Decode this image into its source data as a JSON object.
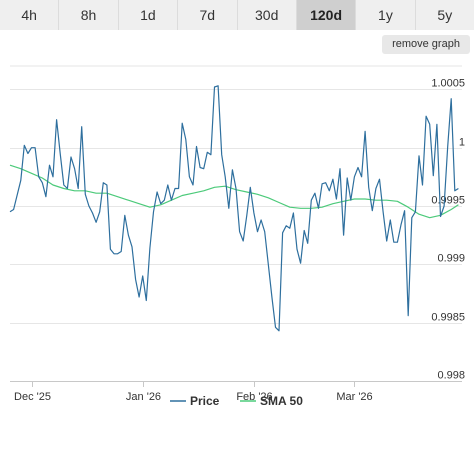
{
  "range_tabs": [
    "4h",
    "8h",
    "1d",
    "7d",
    "30d",
    "120d",
    "1y",
    "5y"
  ],
  "active_tab": "120d",
  "remove_graph_label": "remove graph",
  "colors": {
    "price": "#2e6f9e",
    "sma": "#4cca7a",
    "grid": "#e6e6e6"
  },
  "chart_data": {
    "type": "line",
    "title": "",
    "xlabel": "",
    "ylabel": "",
    "ylim": [
      0.998,
      1.0007
    ],
    "grid": true,
    "legend_position": "bottom",
    "y_ticks": [
      {
        "value": 0.998,
        "label": "0.998"
      },
      {
        "value": 0.9985,
        "label": "0.9985"
      },
      {
        "value": 0.999,
        "label": "0.999"
      },
      {
        "value": 0.9995,
        "label": "0.9995"
      },
      {
        "value": 1.0,
        "label": "1"
      },
      {
        "value": 1.0005,
        "label": "1.0005"
      }
    ],
    "x_range": [
      "2025-11-25",
      "2026-03-31"
    ],
    "x_ticks": [
      {
        "date": "2025-12-01",
        "label": "Dec '25"
      },
      {
        "date": "2026-01-01",
        "label": "Jan '26"
      },
      {
        "date": "2026-02-01",
        "label": "Feb '26"
      },
      {
        "date": "2026-03-01",
        "label": "Mar '26"
      }
    ],
    "series": [
      {
        "name": "Price",
        "points": [
          [
            "2025-11-25",
            0.99945
          ],
          [
            "2025-11-26",
            0.99947
          ],
          [
            "2025-11-28",
            0.99972
          ],
          [
            "2025-11-29",
            1.00002
          ],
          [
            "2025-11-30",
            0.99995
          ],
          [
            "2025-12-01",
            1.0
          ],
          [
            "2025-12-02",
            1.0
          ],
          [
            "2025-12-03",
            0.99975
          ],
          [
            "2025-12-04",
            0.9997
          ],
          [
            "2025-12-05",
            0.99958
          ],
          [
            "2025-12-06",
            0.99985
          ],
          [
            "2025-12-07",
            0.99975
          ],
          [
            "2025-12-08",
            1.00024
          ],
          [
            "2025-12-09",
            0.99995
          ],
          [
            "2025-12-10",
            0.99968
          ],
          [
            "2025-12-11",
            0.99965
          ],
          [
            "2025-12-12",
            0.99992
          ],
          [
            "2025-12-13",
            0.99982
          ],
          [
            "2025-12-14",
            0.99965
          ],
          [
            "2025-12-15",
            1.00018
          ],
          [
            "2025-12-16",
            0.9996
          ],
          [
            "2025-12-17",
            0.9995
          ],
          [
            "2025-12-18",
            0.99944
          ],
          [
            "2025-12-19",
            0.99936
          ],
          [
            "2025-12-20",
            0.99945
          ],
          [
            "2025-12-21",
            0.9997
          ],
          [
            "2025-12-22",
            0.99968
          ],
          [
            "2025-12-23",
            0.99913
          ],
          [
            "2025-12-24",
            0.99909
          ],
          [
            "2025-12-25",
            0.99909
          ],
          [
            "2025-12-26",
            0.99911
          ],
          [
            "2025-12-27",
            0.99942
          ],
          [
            "2025-12-28",
            0.99925
          ],
          [
            "2025-12-29",
            0.99915
          ],
          [
            "2025-12-30",
            0.99887
          ],
          [
            "2025-12-31",
            0.99872
          ],
          [
            "2026-01-01",
            0.9989
          ],
          [
            "2026-01-02",
            0.99869
          ],
          [
            "2026-01-03",
            0.99914
          ],
          [
            "2026-01-04",
            0.99945
          ],
          [
            "2026-01-05",
            0.99962
          ],
          [
            "2026-01-06",
            0.99952
          ],
          [
            "2026-01-07",
            0.99955
          ],
          [
            "2026-01-08",
            0.99968
          ],
          [
            "2026-01-09",
            0.99955
          ],
          [
            "2026-01-10",
            0.99965
          ],
          [
            "2026-01-11",
            0.99965
          ],
          [
            "2026-01-12",
            1.00021
          ],
          [
            "2026-01-13",
            1.00007
          ],
          [
            "2026-01-14",
            0.99975
          ],
          [
            "2026-01-15",
            0.99968
          ],
          [
            "2026-01-16",
            1.00001
          ],
          [
            "2026-01-17",
            0.99983
          ],
          [
            "2026-01-18",
            0.99982
          ],
          [
            "2026-01-19",
            0.99996
          ],
          [
            "2026-01-20",
            0.99994
          ],
          [
            "2026-01-21",
            1.00052
          ],
          [
            "2026-01-22",
            1.00053
          ],
          [
            "2026-01-23",
            0.99994
          ],
          [
            "2026-01-24",
            0.99975
          ],
          [
            "2026-01-25",
            0.99948
          ],
          [
            "2026-01-26",
            0.99981
          ],
          [
            "2026-01-27",
            0.99965
          ],
          [
            "2026-01-28",
            0.99928
          ],
          [
            "2026-01-29",
            0.9992
          ],
          [
            "2026-01-30",
            0.99942
          ],
          [
            "2026-01-31",
            0.99966
          ],
          [
            "2026-02-01",
            0.99944
          ],
          [
            "2026-02-02",
            0.99928
          ],
          [
            "2026-02-03",
            0.99938
          ],
          [
            "2026-02-04",
            0.99928
          ],
          [
            "2026-02-05",
            0.999
          ],
          [
            "2026-02-06",
            0.99872
          ],
          [
            "2026-02-07",
            0.99846
          ],
          [
            "2026-02-08",
            0.99843
          ],
          [
            "2026-02-09",
            0.99927
          ],
          [
            "2026-02-10",
            0.99933
          ],
          [
            "2026-02-11",
            0.99931
          ],
          [
            "2026-02-12",
            0.99944
          ],
          [
            "2026-02-13",
            0.99913
          ],
          [
            "2026-02-14",
            0.99901
          ],
          [
            "2026-02-15",
            0.99929
          ],
          [
            "2026-02-16",
            0.99918
          ],
          [
            "2026-02-17",
            0.99955
          ],
          [
            "2026-02-18",
            0.99961
          ],
          [
            "2026-02-19",
            0.99948
          ],
          [
            "2026-02-20",
            0.99969
          ],
          [
            "2026-02-21",
            0.9997
          ],
          [
            "2026-02-22",
            0.99963
          ],
          [
            "2026-02-23",
            0.99973
          ],
          [
            "2026-02-24",
            0.99956
          ],
          [
            "2026-02-25",
            0.99982
          ],
          [
            "2026-02-26",
            0.99925
          ],
          [
            "2026-02-27",
            0.99974
          ],
          [
            "2026-02-28",
            0.99955
          ],
          [
            "2026-03-01",
            0.99975
          ],
          [
            "2026-03-02",
            0.99983
          ],
          [
            "2026-03-03",
            0.99975
          ],
          [
            "2026-03-04",
            1.00014
          ],
          [
            "2026-03-05",
            0.99966
          ],
          [
            "2026-03-06",
            0.99946
          ],
          [
            "2026-03-07",
            0.99965
          ],
          [
            "2026-03-08",
            0.99973
          ],
          [
            "2026-03-09",
            0.99945
          ],
          [
            "2026-03-10",
            0.9992
          ],
          [
            "2026-03-11",
            0.99938
          ],
          [
            "2026-03-12",
            0.99919
          ],
          [
            "2026-03-13",
            0.99919
          ],
          [
            "2026-03-14",
            0.99934
          ],
          [
            "2026-03-15",
            0.99946
          ],
          [
            "2026-03-16",
            0.99856
          ],
          [
            "2026-03-17",
            0.9994
          ],
          [
            "2026-03-18",
            0.99945
          ],
          [
            "2026-03-19",
            0.99993
          ],
          [
            "2026-03-20",
            0.99968
          ],
          [
            "2026-03-21",
            1.00027
          ],
          [
            "2026-03-22",
            1.0002
          ],
          [
            "2026-03-23",
            0.99976
          ],
          [
            "2026-03-24",
            1.0002
          ],
          [
            "2026-03-25",
            0.99941
          ],
          [
            "2026-03-26",
            0.9995
          ],
          [
            "2026-03-27",
            1.00001
          ],
          [
            "2026-03-28",
            1.00042
          ],
          [
            "2026-03-29",
            0.99963
          ],
          [
            "2026-03-30",
            0.99965
          ]
        ]
      },
      {
        "name": "SMA 50",
        "points": [
          [
            "2025-11-25",
            0.99985
          ],
          [
            "2025-11-28",
            0.99982
          ],
          [
            "2025-12-01",
            0.99978
          ],
          [
            "2025-12-04",
            0.99974
          ],
          [
            "2025-12-07",
            0.99968
          ],
          [
            "2025-12-10",
            0.99965
          ],
          [
            "2025-12-13",
            0.99963
          ],
          [
            "2025-12-16",
            0.99963
          ],
          [
            "2025-12-19",
            0.99961
          ],
          [
            "2025-12-22",
            0.99961
          ],
          [
            "2025-12-25",
            0.99958
          ],
          [
            "2025-12-28",
            0.99955
          ],
          [
            "2025-12-31",
            0.99952
          ],
          [
            "2026-01-03",
            0.99949
          ],
          [
            "2026-01-06",
            0.99951
          ],
          [
            "2026-01-09",
            0.99955
          ],
          [
            "2026-01-12",
            0.99959
          ],
          [
            "2026-01-15",
            0.99961
          ],
          [
            "2026-01-18",
            0.99963
          ],
          [
            "2026-01-21",
            0.99966
          ],
          [
            "2026-01-24",
            0.99967
          ],
          [
            "2026-01-27",
            0.99964
          ],
          [
            "2026-01-30",
            0.99962
          ],
          [
            "2026-02-02",
            0.9996
          ],
          [
            "2026-02-05",
            0.99957
          ],
          [
            "2026-02-08",
            0.99953
          ],
          [
            "2026-02-11",
            0.99949
          ],
          [
            "2026-02-14",
            0.99948
          ],
          [
            "2026-02-17",
            0.99948
          ],
          [
            "2026-02-20",
            0.99949
          ],
          [
            "2026-02-23",
            0.99952
          ],
          [
            "2026-02-26",
            0.99954
          ],
          [
            "2026-03-01",
            0.99956
          ],
          [
            "2026-03-04",
            0.99956
          ],
          [
            "2026-03-07",
            0.99955
          ],
          [
            "2026-03-10",
            0.99955
          ],
          [
            "2026-03-13",
            0.99954
          ],
          [
            "2026-03-16",
            0.99949
          ],
          [
            "2026-03-19",
            0.99943
          ],
          [
            "2026-03-22",
            0.9994
          ],
          [
            "2026-03-25",
            0.99942
          ],
          [
            "2026-03-28",
            0.99947
          ],
          [
            "2026-03-30",
            0.99951
          ]
        ]
      }
    ]
  }
}
